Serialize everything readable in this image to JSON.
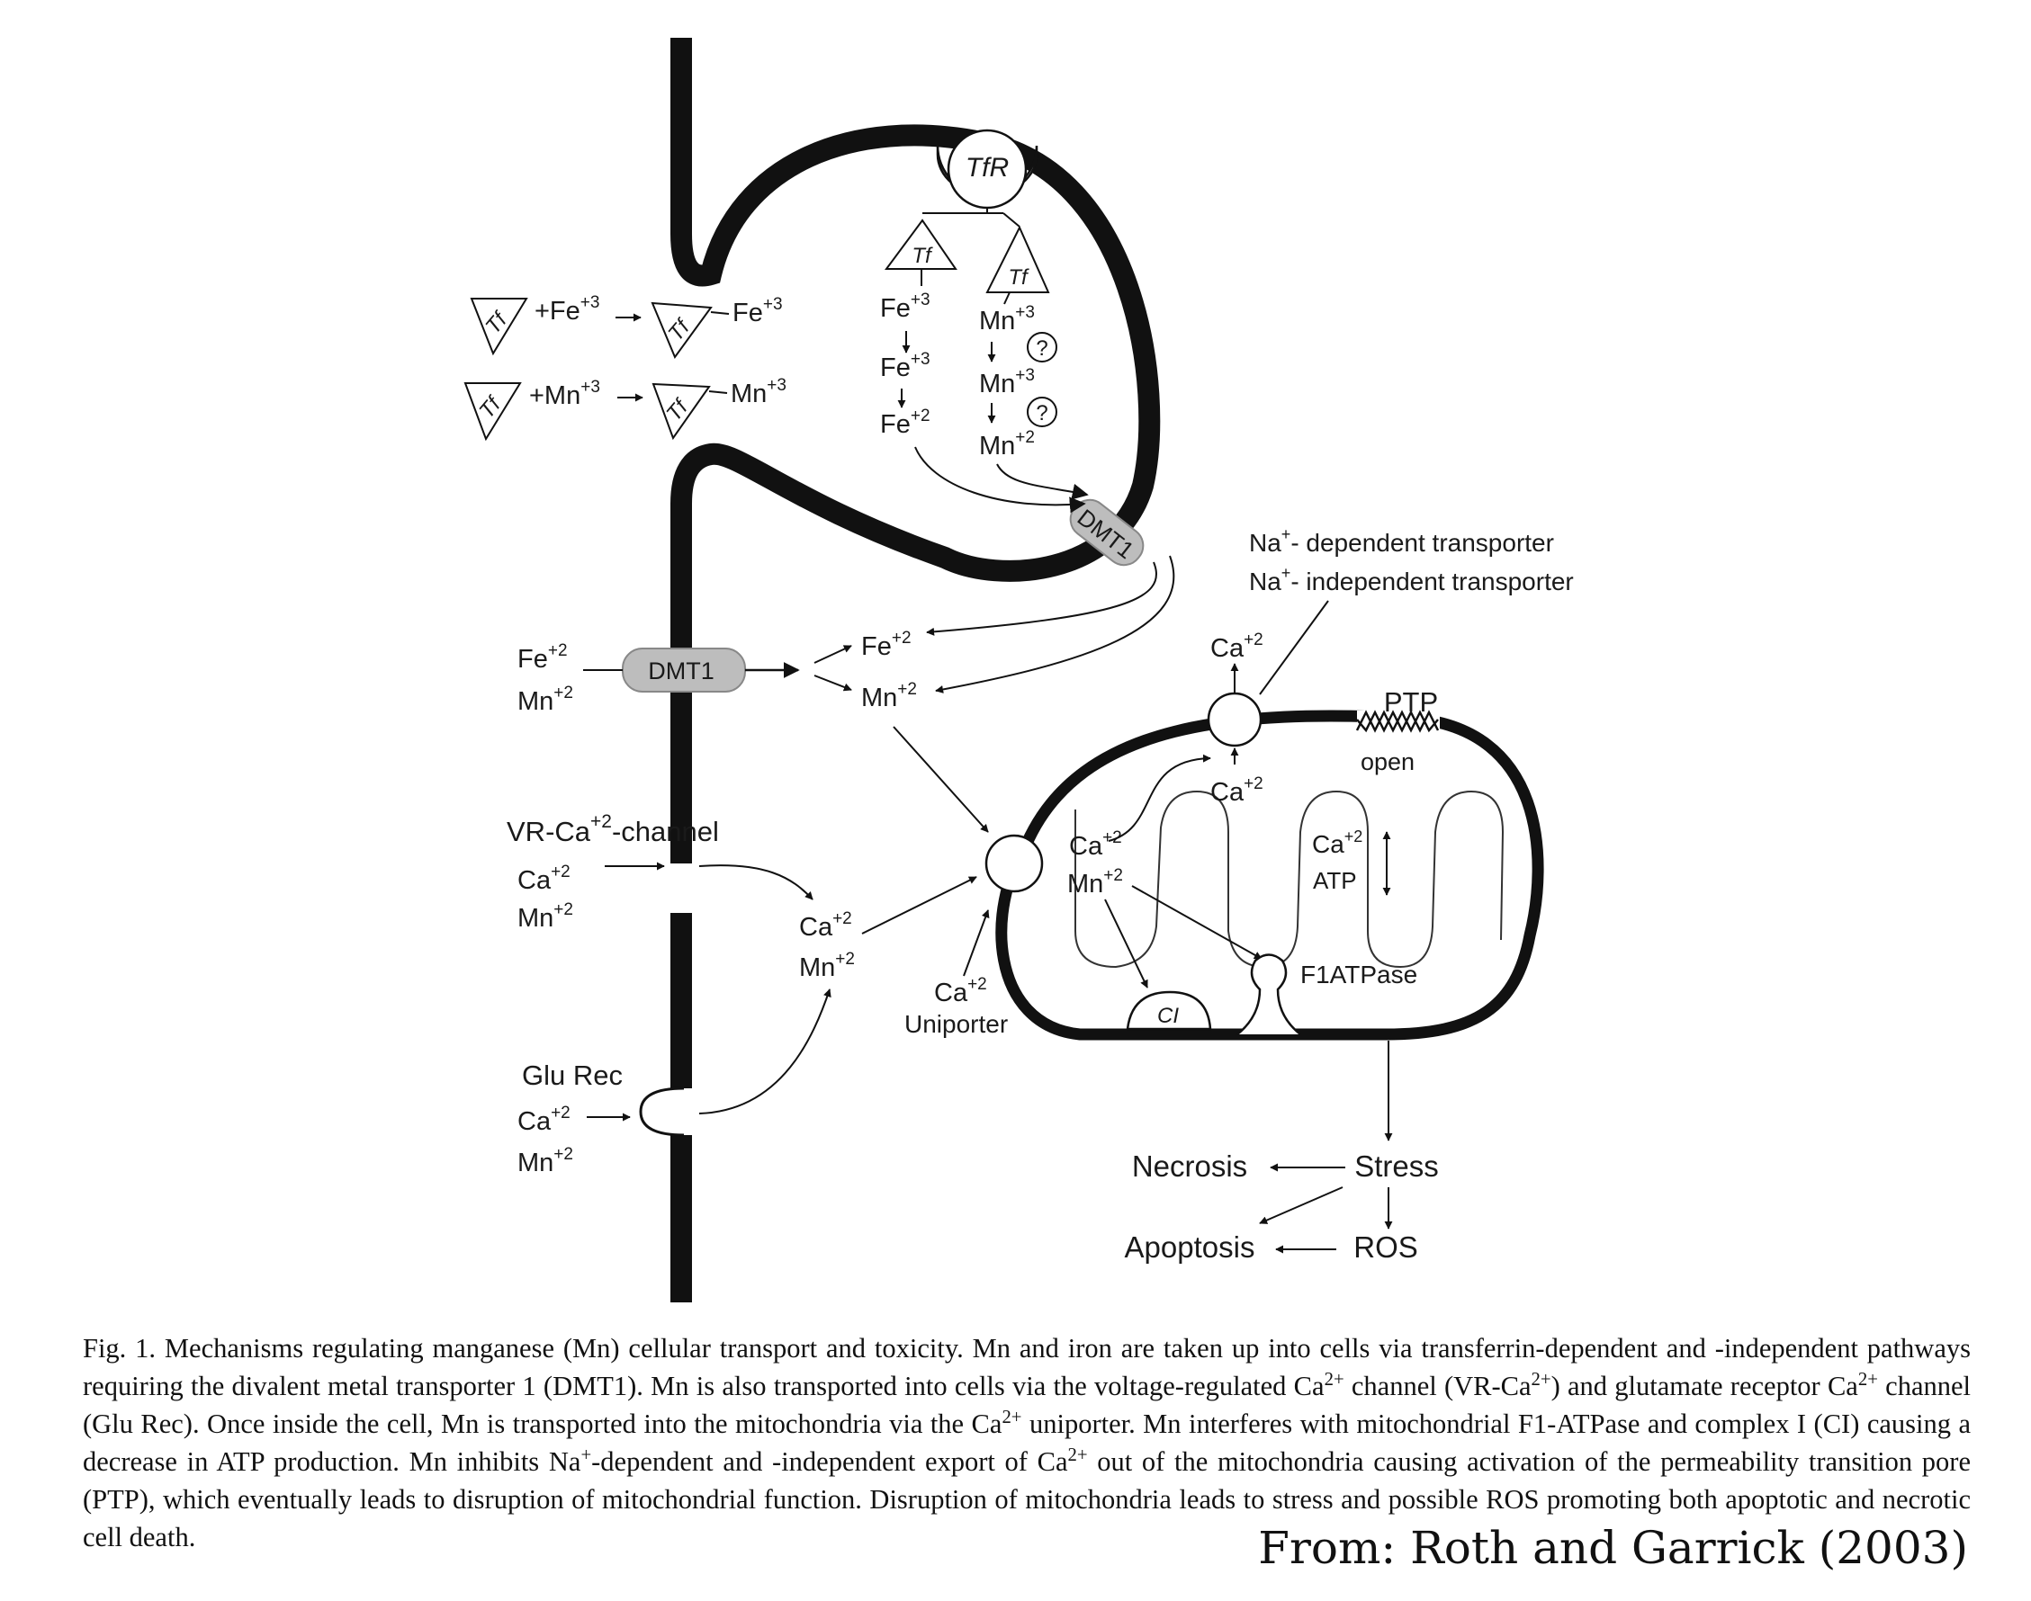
{
  "labels": {
    "tfr": "TfR",
    "tf": "Tf",
    "fe3": "Fe",
    "mn3": "Mn",
    "fe2": "Fe",
    "mn2": "Mn",
    "ca2": "Ca",
    "ch_p3": "+3",
    "ch_p2": "+2",
    "plus_fe": "+Fe",
    "plus_mn": "+Mn",
    "question": "?",
    "dmt1": "DMT1",
    "na_dep": "- dependent transporter",
    "na_indep": "- independent transporter",
    "na": "Na",
    "plus": "+",
    "ptp": "PTP",
    "open": "open",
    "vr_ca_1": "VR-Ca",
    "vr_ca_2": "-channel",
    "uniporter": "Uniporter",
    "atp": "ATP",
    "f1atpase": "F1ATPase",
    "ci": "CI",
    "glu_rec": "Glu Rec",
    "necrosis": "Necrosis",
    "stress": "Stress",
    "apoptosis": "Apoptosis",
    "ros": "ROS"
  },
  "caption": {
    "p1": "Fig. 1. Mechanisms regulating manganese (Mn) cellular transport and toxicity. Mn and iron are taken up into cells via transferrin-dependent and -independent pathways requiring the divalent metal transporter 1 (DMT1). Mn is also transported into cells via the voltage-regulated Ca",
    "sup_2plus": "2+",
    "p2": " channel (VR-Ca",
    "p3": ") and glutamate receptor Ca",
    "p4": " channel (Glu Rec). Once inside the cell, Mn is transported into the mitochondria via the Ca",
    "p5": " uniporter. Mn interferes with mitochondrial F1-ATPase and complex I (CI) causing a decrease in ATP production. Mn inhibits Na",
    "sup_plus": "+",
    "p6": "-dependent and -independent export of Ca",
    "p7": " out of the mitochondria causing activation of the permeability transition pore (PTP), which eventually leads to disruption of mitochondrial function. Disruption of mitochondria leads to stress and possible ROS promoting both apoptotic and necrotic cell death."
  },
  "citation": "From: Roth and Garrick (2003)"
}
